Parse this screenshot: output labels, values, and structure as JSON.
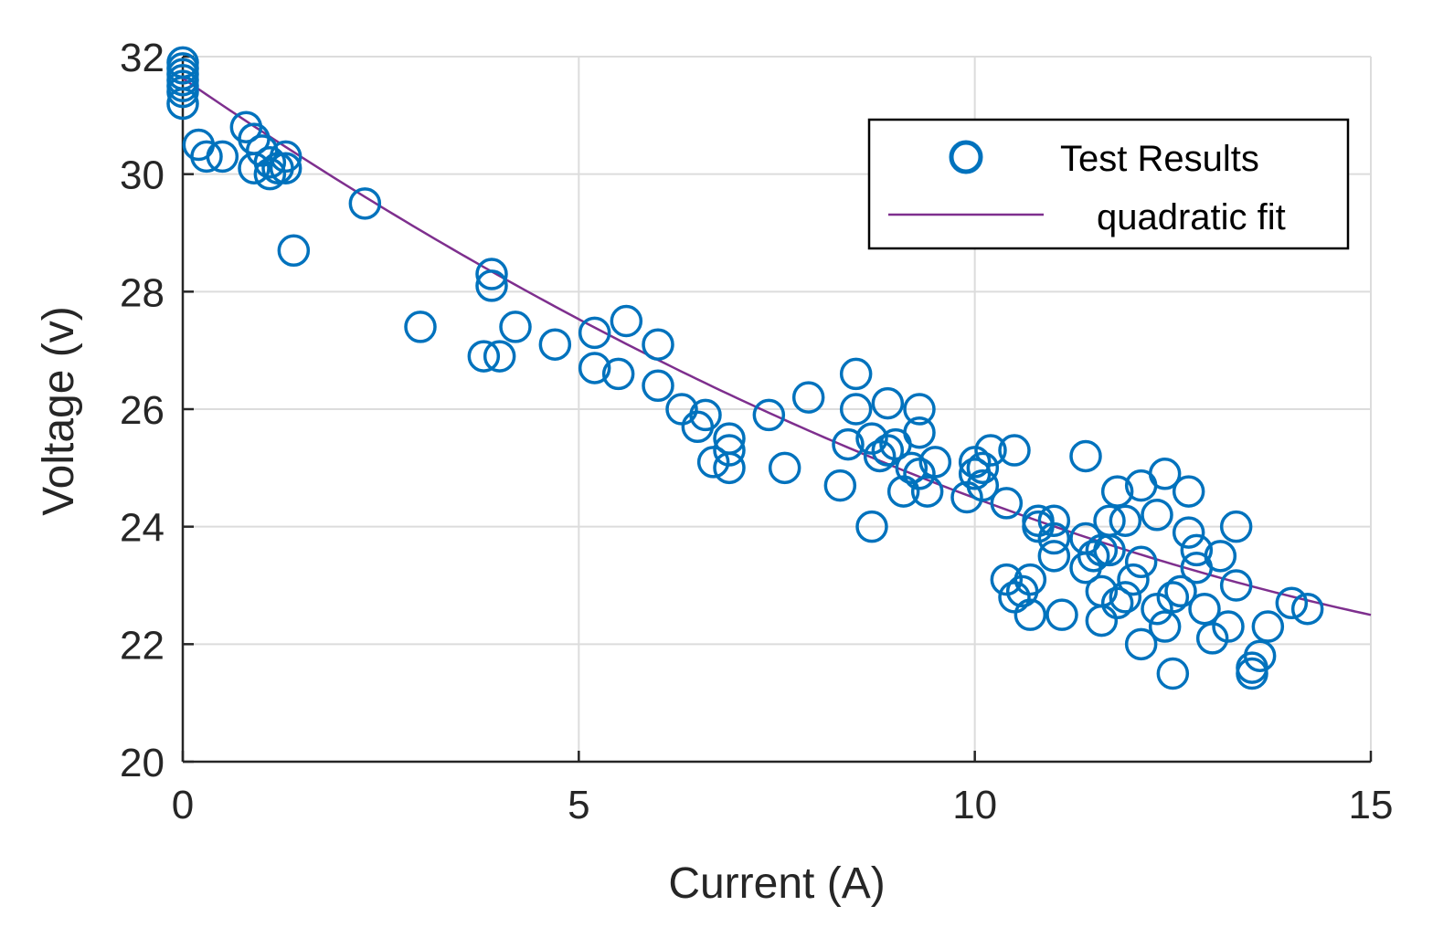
{
  "chart_data": {
    "type": "scatter",
    "title": "",
    "xlabel": "Current (A)",
    "ylabel": "Voltage (v)",
    "xlim": [
      0,
      15
    ],
    "ylim": [
      20,
      32
    ],
    "xticks": [
      "0",
      "5",
      "10",
      "15"
    ],
    "yticks": [
      "20",
      "22",
      "24",
      "26",
      "28",
      "30",
      "32"
    ],
    "grid": true,
    "legend_position": "top-right",
    "colors": {
      "scatter": "#0072BD",
      "fit": "#7E2F8E",
      "axis": "#262626",
      "grid": "#dcdcdc"
    },
    "series": [
      {
        "name": "Test Results",
        "marker": "circle",
        "points": [
          [
            0,
            31.9
          ],
          [
            0,
            31.8
          ],
          [
            0,
            31.7
          ],
          [
            0,
            31.6
          ],
          [
            0,
            31.5
          ],
          [
            0,
            31.4
          ],
          [
            0,
            31.2
          ],
          [
            0.2,
            30.5
          ],
          [
            0.3,
            30.3
          ],
          [
            0.5,
            30.3
          ],
          [
            0.8,
            30.8
          ],
          [
            0.9,
            30.6
          ],
          [
            0.9,
            30.1
          ],
          [
            1.0,
            30.4
          ],
          [
            1.1,
            30.2
          ],
          [
            1.1,
            30.0
          ],
          [
            1.2,
            30.1
          ],
          [
            1.3,
            30.3
          ],
          [
            1.3,
            30.1
          ],
          [
            1.4,
            28.7
          ],
          [
            2.3,
            29.5
          ],
          [
            3.0,
            27.4
          ],
          [
            3.8,
            26.9
          ],
          [
            3.9,
            28.3
          ],
          [
            3.9,
            28.1
          ],
          [
            4.0,
            26.9
          ],
          [
            4.2,
            27.4
          ],
          [
            4.7,
            27.1
          ],
          [
            5.2,
            27.3
          ],
          [
            5.2,
            26.7
          ],
          [
            5.5,
            26.6
          ],
          [
            5.6,
            27.5
          ],
          [
            6.0,
            27.1
          ],
          [
            6.0,
            26.4
          ],
          [
            6.3,
            26.0
          ],
          [
            6.5,
            25.7
          ],
          [
            6.6,
            25.9
          ],
          [
            6.7,
            25.1
          ],
          [
            6.9,
            25.5
          ],
          [
            6.9,
            25.3
          ],
          [
            6.9,
            25.0
          ],
          [
            7.4,
            25.9
          ],
          [
            7.6,
            25.0
          ],
          [
            7.9,
            26.2
          ],
          [
            8.3,
            24.7
          ],
          [
            8.4,
            25.4
          ],
          [
            8.5,
            26.6
          ],
          [
            8.5,
            26.0
          ],
          [
            8.7,
            25.5
          ],
          [
            8.7,
            24.0
          ],
          [
            8.8,
            25.2
          ],
          [
            8.9,
            26.1
          ],
          [
            8.9,
            25.3
          ],
          [
            9.0,
            25.4
          ],
          [
            9.1,
            24.6
          ],
          [
            9.2,
            25.0
          ],
          [
            9.3,
            26.0
          ],
          [
            9.3,
            25.6
          ],
          [
            9.3,
            24.9
          ],
          [
            9.4,
            24.6
          ],
          [
            9.5,
            25.1
          ],
          [
            9.9,
            24.5
          ],
          [
            10.0,
            25.1
          ],
          [
            10.0,
            24.9
          ],
          [
            10.1,
            25.0
          ],
          [
            10.1,
            24.7
          ],
          [
            10.2,
            25.3
          ],
          [
            10.4,
            24.4
          ],
          [
            10.4,
            23.1
          ],
          [
            10.5,
            25.3
          ],
          [
            10.5,
            22.8
          ],
          [
            10.6,
            22.9
          ],
          [
            10.7,
            23.1
          ],
          [
            10.7,
            22.5
          ],
          [
            10.8,
            24.1
          ],
          [
            10.8,
            24.0
          ],
          [
            11.0,
            24.1
          ],
          [
            11.0,
            23.8
          ],
          [
            11.0,
            23.5
          ],
          [
            11.1,
            22.5
          ],
          [
            11.4,
            25.2
          ],
          [
            11.4,
            23.8
          ],
          [
            11.4,
            23.3
          ],
          [
            11.5,
            23.5
          ],
          [
            11.6,
            23.6
          ],
          [
            11.6,
            22.9
          ],
          [
            11.6,
            22.4
          ],
          [
            11.7,
            24.1
          ],
          [
            11.7,
            23.6
          ],
          [
            11.8,
            24.6
          ],
          [
            11.8,
            22.7
          ],
          [
            11.9,
            24.1
          ],
          [
            11.9,
            22.8
          ],
          [
            12.0,
            23.1
          ],
          [
            12.1,
            24.7
          ],
          [
            12.1,
            23.4
          ],
          [
            12.1,
            22.0
          ],
          [
            12.3,
            24.2
          ],
          [
            12.3,
            22.6
          ],
          [
            12.4,
            24.9
          ],
          [
            12.4,
            22.3
          ],
          [
            12.5,
            21.5
          ],
          [
            12.5,
            22.8
          ],
          [
            12.6,
            22.9
          ],
          [
            12.7,
            24.6
          ],
          [
            12.7,
            23.9
          ],
          [
            12.8,
            23.6
          ],
          [
            12.8,
            23.3
          ],
          [
            12.9,
            22.6
          ],
          [
            13.0,
            22.1
          ],
          [
            13.1,
            23.5
          ],
          [
            13.2,
            22.3
          ],
          [
            13.3,
            24.0
          ],
          [
            13.3,
            23.0
          ],
          [
            13.5,
            21.6
          ],
          [
            13.5,
            21.5
          ],
          [
            13.6,
            21.8
          ],
          [
            13.7,
            22.3
          ],
          [
            14.0,
            22.7
          ],
          [
            14.2,
            22.6
          ]
        ]
      },
      {
        "name": "quadratic fit",
        "type": "line",
        "coefficients": {
          "a": 0.0211,
          "b": -0.9253,
          "c": 31.63
        },
        "x_range": [
          0,
          15
        ]
      }
    ]
  }
}
